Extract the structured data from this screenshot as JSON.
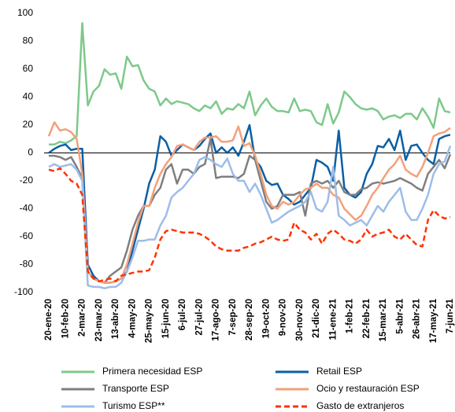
{
  "chart_data": {
    "type": "line",
    "categories": [
      "20-ene-20",
      null,
      null,
      "10-feb-20",
      null,
      null,
      "2-mar-20",
      null,
      null,
      "23-mar-20",
      null,
      null,
      "13-abr-20",
      null,
      null,
      "4-may-20",
      null,
      null,
      "25-may-20",
      null,
      null,
      "15-jun-20",
      null,
      null,
      "6-jul-20",
      null,
      null,
      "27-jul-20",
      null,
      null,
      "17-ago-20",
      null,
      null,
      "7-sep-20",
      null,
      null,
      "28-sep-20",
      null,
      null,
      "19-oct-20",
      null,
      null,
      "9-nov-20",
      null,
      null,
      "30-nov-20",
      null,
      null,
      "21-dic-20",
      null,
      null,
      "11-ene-21",
      null,
      null,
      "1-feb-21",
      null,
      null,
      "22-feb-21",
      null,
      null,
      "15-mar-21",
      null,
      null,
      "5-abr-21",
      null,
      null,
      "26-abr-21",
      null,
      null,
      "17-may-21",
      null,
      null,
      "7-jun-21"
    ],
    "series": [
      {
        "name": "Primera necesidad ESP",
        "color": "#7dc98a",
        "values": [
          6,
          6,
          8,
          7,
          9,
          12,
          93,
          34,
          44,
          48,
          60,
          56,
          57,
          46,
          69,
          62,
          63,
          52,
          46,
          44,
          34,
          39,
          35,
          37,
          36,
          35,
          32,
          30,
          34,
          32,
          37,
          28,
          32,
          31,
          35,
          32,
          44,
          27,
          34,
          39,
          33,
          30,
          30,
          29,
          39,
          30,
          31,
          30,
          22,
          20,
          35,
          21,
          29,
          44,
          40,
          35,
          32,
          31,
          32,
          30,
          24,
          26,
          27,
          25,
          28,
          28,
          24,
          32,
          26,
          18,
          39,
          30,
          29
        ]
      },
      {
        "name": "Retail ESP",
        "color": "#0b5fa5",
        "values": [
          0,
          3,
          5,
          6,
          2,
          3,
          3,
          -80,
          -88,
          -92,
          -93,
          -93,
          -92,
          -90,
          -85,
          -70,
          -55,
          -40,
          -22,
          -12,
          12,
          8,
          -2,
          2,
          6,
          4,
          2,
          5,
          10,
          14,
          0,
          4,
          0,
          4,
          -2,
          8,
          20,
          -5,
          -10,
          -20,
          -23,
          -22,
          -30,
          -33,
          -37,
          -35,
          -30,
          -25,
          -5,
          -7,
          -10,
          -20,
          16,
          -25,
          -30,
          -32,
          -28,
          -15,
          -8,
          5,
          4,
          10,
          2,
          16,
          -5,
          5,
          6,
          0,
          -5,
          -8,
          10,
          12,
          13
        ]
      },
      {
        "name": "Transporte ESP",
        "color": "#7f7f7f",
        "values": [
          -2,
          -2,
          -3,
          -5,
          -3,
          -10,
          -18,
          -85,
          -90,
          -92,
          -93,
          -88,
          -85,
          -82,
          -70,
          -55,
          -45,
          -38,
          -38,
          -30,
          -25,
          -12,
          -8,
          -22,
          -12,
          -12,
          -15,
          -10,
          -8,
          10,
          -18,
          -17,
          -17,
          -17,
          -18,
          -15,
          -2,
          -5,
          -20,
          -35,
          -40,
          -38,
          -30,
          -30,
          -30,
          -28,
          -45,
          -22,
          -20,
          -22,
          -20,
          -25,
          -20,
          -28,
          -30,
          -30,
          -26,
          -25,
          -22,
          -21,
          -22,
          -21,
          -20,
          -18,
          -20,
          -22,
          -25,
          -27,
          -15,
          -10,
          -5,
          -11,
          -1
        ]
      },
      {
        "name": "Ocio y restauración ESP",
        "color": "#f4a07a",
        "values": [
          12,
          22,
          16,
          17,
          15,
          10,
          -15,
          -85,
          -90,
          -92,
          -93,
          -93,
          -92,
          -90,
          -80,
          -65,
          -50,
          -38,
          -38,
          -25,
          -15,
          -8,
          -3,
          5,
          6,
          4,
          2,
          8,
          11,
          11,
          12,
          8,
          8,
          9,
          19,
          5,
          7,
          -2,
          -15,
          -30,
          -38,
          -40,
          -35,
          -37,
          -35,
          -30,
          -26,
          -25,
          -22,
          -25,
          -25,
          -30,
          -32,
          -40,
          -44,
          -48,
          -45,
          -38,
          -30,
          -25,
          -18,
          -12,
          -8,
          -2,
          -12,
          -15,
          -17,
          -10,
          0,
          12,
          14,
          15,
          18
        ]
      },
      {
        "name": "Turismo ESP**",
        "color": "#9dbde8",
        "values": [
          -10,
          -8,
          -10,
          -9,
          -8,
          -12,
          -20,
          -95,
          -96,
          -96,
          -97,
          -96,
          -96,
          -93,
          -85,
          -75,
          -63,
          -63,
          -62,
          -62,
          -52,
          -45,
          -32,
          -28,
          -25,
          -20,
          -15,
          -5,
          -3,
          -5,
          -8,
          -10,
          -4,
          -15,
          -20,
          -20,
          -28,
          -22,
          -30,
          -40,
          -50,
          -48,
          -45,
          -42,
          -40,
          -38,
          -35,
          -28,
          -40,
          -42,
          -35,
          -10,
          -45,
          -48,
          -52,
          -50,
          -48,
          -52,
          -45,
          -38,
          -42,
          -35,
          -30,
          -25,
          -42,
          -48,
          -48,
          -40,
          -30,
          -15,
          -8,
          -6,
          5
        ]
      },
      {
        "name": "Gasto de extranjeros",
        "color": "#ff3300",
        "dashed": true,
        "values": [
          -12,
          -13,
          -11,
          -15,
          -20,
          -22,
          -30,
          -85,
          -90,
          -92,
          -91,
          -90,
          -92,
          -88,
          -87,
          -86,
          -85,
          -85,
          -84,
          -75,
          -62,
          -56,
          -55,
          -56,
          -57,
          -57,
          -57,
          -58,
          -60,
          -63,
          -67,
          -69,
          -70,
          -70,
          -70,
          -68,
          -67,
          -65,
          -64,
          -62,
          -60,
          -62,
          -63,
          -62,
          -50,
          -55,
          -57,
          -62,
          -58,
          -65,
          -58,
          -55,
          -58,
          -62,
          -63,
          -65,
          -62,
          -55,
          -60,
          -58,
          -57,
          -55,
          -60,
          -62,
          -58,
          -62,
          -66,
          -67,
          -48,
          -41,
          -45,
          -47,
          -46
        ]
      }
    ],
    "ylim": [
      -100,
      100
    ],
    "yticks": [
      -100,
      -80,
      -60,
      -40,
      -20,
      0,
      20,
      40,
      60,
      80,
      100
    ],
    "grid": false,
    "legend": "bottom"
  }
}
